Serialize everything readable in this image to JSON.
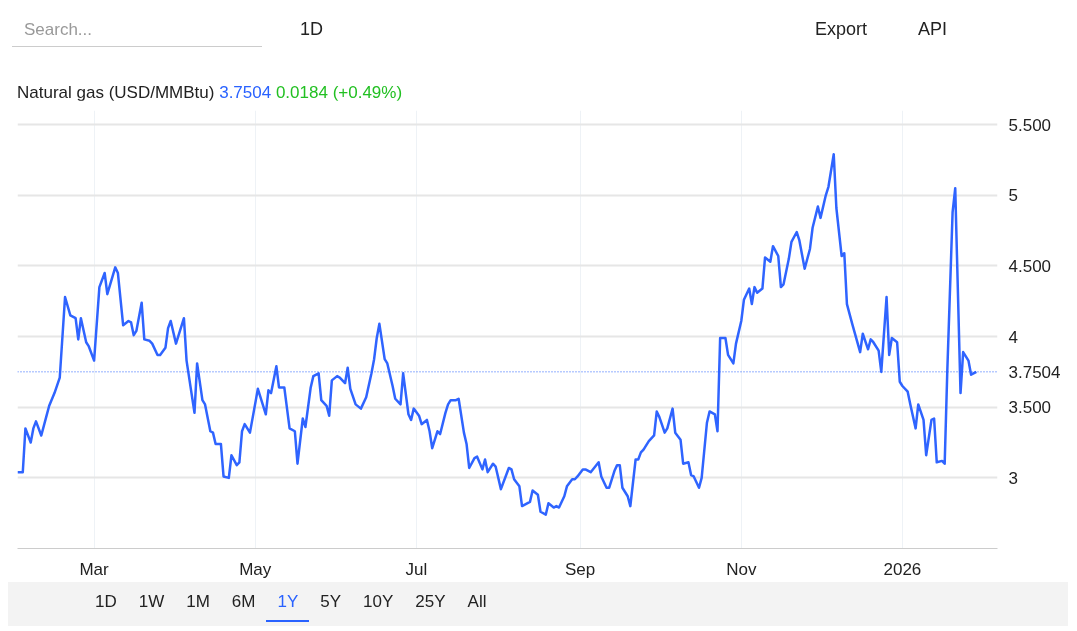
{
  "chart_data": {
    "type": "line",
    "title": "Natural gas (USD/MMBtu)",
    "annotations": [
      "3.7504",
      "0.0184 (+0.49%)",
      "Search...",
      "1D",
      "Export",
      "API",
      "1D",
      "1W",
      "1M",
      "6M",
      "1Y",
      "5Y",
      "10Y",
      "25Y",
      "All"
    ],
    "x": [
      "2025-01-31",
      "2025-02-02",
      "2025-02-03",
      "2025-02-05",
      "2025-02-06",
      "2025-02-07",
      "2025-02-09",
      "2025-02-11",
      "2025-02-12",
      "2025-02-14",
      "2025-02-16",
      "2025-02-18",
      "2025-02-20",
      "2025-02-22",
      "2025-02-23",
      "2025-02-24",
      "2025-02-26",
      "2025-02-27",
      "2025-03-01",
      "2025-03-03",
      "2025-03-05",
      "2025-03-06",
      "2025-03-09",
      "2025-03-10",
      "2025-03-12",
      "2025-03-14",
      "2025-03-15",
      "2025-03-16",
      "2025-03-17",
      "2025-03-19",
      "2025-03-20",
      "2025-03-22",
      "2025-03-23",
      "2025-03-25",
      "2025-03-26",
      "2025-03-28",
      "2025-03-29",
      "2025-03-30",
      "2025-04-01",
      "2025-04-04",
      "2025-04-05",
      "2025-04-08",
      "2025-04-09",
      "2025-04-11",
      "2025-04-12",
      "2025-04-14",
      "2025-04-15",
      "2025-04-16",
      "2025-04-18",
      "2025-04-19",
      "2025-04-21",
      "2025-04-22",
      "2025-04-24",
      "2025-04-25",
      "2025-04-26",
      "2025-04-27",
      "2025-04-29",
      "2025-05-02",
      "2025-05-05",
      "2025-05-06",
      "2025-05-07",
      "2025-05-09",
      "2025-05-10",
      "2025-05-12",
      "2025-05-14",
      "2025-05-16",
      "2025-05-17",
      "2025-05-19",
      "2025-05-20",
      "2025-05-22",
      "2025-05-23",
      "2025-05-25",
      "2025-05-26",
      "2025-05-28",
      "2025-05-29",
      "2025-05-30",
      "2025-06-01",
      "2025-06-02",
      "2025-06-04",
      "2025-06-05",
      "2025-06-06",
      "2025-06-08",
      "2025-06-10",
      "2025-06-12",
      "2025-06-14",
      "2025-06-15",
      "2025-06-16",
      "2025-06-17",
      "2025-06-19",
      "2025-06-20",
      "2025-06-22",
      "2025-06-23",
      "2025-06-25",
      "2025-06-26",
      "2025-06-28",
      "2025-06-29",
      "2025-06-30",
      "2025-07-02",
      "2025-07-03",
      "2025-07-05",
      "2025-07-06",
      "2025-07-07",
      "2025-07-09",
      "2025-07-10",
      "2025-07-12",
      "2025-07-13",
      "2025-07-14",
      "2025-07-16",
      "2025-07-17",
      "2025-07-19",
      "2025-07-20",
      "2025-07-21",
      "2025-07-23",
      "2025-07-24",
      "2025-07-26",
      "2025-07-27",
      "2025-07-28",
      "2025-07-30",
      "2025-07-31",
      "2025-08-02",
      "2025-08-05",
      "2025-08-06",
      "2025-08-07",
      "2025-08-09",
      "2025-08-10",
      "2025-08-13",
      "2025-08-14",
      "2025-08-16",
      "2025-08-17",
      "2025-08-19",
      "2025-08-20",
      "2025-08-22",
      "2025-08-23",
      "2025-08-24",
      "2025-08-26",
      "2025-08-27",
      "2025-08-29",
      "2025-08-30",
      "2025-08-31",
      "2025-09-02",
      "2025-09-03",
      "2025-09-05",
      "2025-09-08",
      "2025-09-09",
      "2025-09-11",
      "2025-09-12",
      "2025-09-14",
      "2025-09-15",
      "2025-09-16",
      "2025-09-17",
      "2025-09-19",
      "2025-09-20",
      "2025-09-22",
      "2025-09-23",
      "2025-09-24",
      "2025-09-25",
      "2025-09-27",
      "2025-09-29",
      "2025-09-30",
      "2025-10-01",
      "2025-10-03",
      "2025-10-04",
      "2025-10-06",
      "2025-10-07",
      "2025-10-09",
      "2025-10-10",
      "2025-10-12",
      "2025-10-13",
      "2025-10-14",
      "2025-10-16",
      "2025-10-17",
      "2025-10-19",
      "2025-10-20",
      "2025-10-22",
      "2025-10-23",
      "2025-10-24",
      "2025-10-26",
      "2025-10-27",
      "2025-10-29",
      "2025-10-30",
      "2025-11-01",
      "2025-11-02",
      "2025-11-04",
      "2025-11-05",
      "2025-11-06",
      "2025-11-07",
      "2025-11-09",
      "2025-11-10",
      "2025-11-12",
      "2025-11-13",
      "2025-11-15",
      "2025-11-16",
      "2025-11-17",
      "2025-11-19",
      "2025-11-20",
      "2025-11-22",
      "2025-11-23",
      "2025-11-25",
      "2025-11-27",
      "2025-11-28",
      "2025-11-30",
      "2025-12-01",
      "2025-12-03",
      "2025-12-04",
      "2025-12-06",
      "2025-12-07",
      "2025-12-09",
      "2025-12-10",
      "2025-12-11",
      "2025-12-13",
      "2025-12-16",
      "2025-12-17",
      "2025-12-19",
      "2025-12-20",
      "2025-12-21",
      "2025-12-23",
      "2025-12-24",
      "2025-12-26",
      "2025-12-27",
      "2025-12-28",
      "2025-12-30",
      "2025-12-31",
      "2026-01-01",
      "2026-01-03",
      "2026-01-04",
      "2026-01-06",
      "2026-01-07",
      "2026-01-09",
      "2026-01-10",
      "2026-01-12",
      "2026-01-13",
      "2026-01-14",
      "2026-01-16",
      "2026-01-17",
      "2026-01-18",
      "2026-01-20",
      "2026-01-21",
      "2026-01-23",
      "2026-01-24",
      "2026-01-26",
      "2026-01-27",
      "2026-01-29"
    ],
    "series": [
      {
        "color": "#2f64ff",
        "values": [
          3.04,
          3.04,
          3.35,
          3.25,
          3.35,
          3.4,
          3.3,
          3.44,
          3.51,
          3.6,
          3.71,
          4.28,
          4.15,
          4.13,
          3.98,
          4.13,
          3.96,
          3.93,
          3.83,
          4.35,
          4.45,
          4.3,
          4.49,
          4.45,
          4.08,
          4.11,
          4.1,
          4.01,
          4.04,
          4.24,
          3.98,
          3.97,
          3.95,
          3.87,
          3.87,
          3.92,
          4.06,
          4.11,
          3.95,
          4.13,
          3.83,
          3.46,
          3.81,
          3.55,
          3.52,
          3.33,
          3.32,
          3.24,
          3.24,
          3.01,
          3.0,
          3.16,
          3.09,
          3.11,
          3.33,
          3.38,
          3.32,
          3.63,
          3.45,
          3.62,
          3.6,
          3.79,
          3.64,
          3.64,
          3.35,
          3.33,
          3.1,
          3.42,
          3.36,
          3.64,
          3.72,
          3.74,
          3.55,
          3.51,
          3.44,
          3.69,
          3.72,
          3.71,
          3.67,
          3.78,
          3.63,
          3.52,
          3.49,
          3.57,
          3.74,
          3.84,
          3.99,
          4.09,
          3.84,
          3.81,
          3.65,
          3.56,
          3.52,
          3.74,
          3.45,
          3.41,
          3.49,
          3.44,
          3.38,
          3.41,
          3.33,
          3.21,
          3.33,
          3.31,
          3.46,
          3.52,
          3.55,
          3.55,
          3.56,
          3.32,
          3.24,
          3.07,
          3.14,
          3.15,
          3.06,
          3.13,
          3.04,
          3.1,
          3.08,
          2.92,
          3.07,
          3.06,
          2.99,
          2.94,
          2.8,
          2.83,
          2.91,
          2.88,
          2.76,
          2.74,
          2.82,
          2.79,
          2.8,
          2.79,
          2.87,
          2.94,
          2.99,
          2.99,
          3.01,
          3.06,
          3.06,
          3.04,
          3.11,
          3.01,
          2.93,
          2.93,
          3.05,
          3.09,
          3.09,
          2.93,
          2.87,
          2.8,
          3.13,
          3.13,
          3.18,
          3.2,
          3.26,
          3.3,
          3.47,
          3.43,
          3.32,
          3.35,
          3.49,
          3.32,
          3.27,
          3.1,
          3.11,
          3.02,
          3.01,
          2.93,
          3.0,
          3.39,
          3.47,
          3.45,
          3.33,
          3.99,
          3.99,
          3.87,
          3.81,
          3.95,
          4.11,
          4.26,
          4.34,
          4.23,
          4.35,
          4.31,
          4.34,
          4.56,
          4.53,
          4.64,
          4.57,
          4.35,
          4.37,
          4.55,
          4.67,
          4.74,
          4.68,
          4.48,
          4.62,
          4.77,
          4.92,
          4.84,
          5.0,
          5.06,
          5.29,
          4.91,
          4.57,
          4.59,
          4.23,
          4.09,
          3.89,
          4.02,
          3.91,
          3.98,
          3.96,
          3.9,
          3.75,
          4.28,
          3.87,
          3.99,
          3.96,
          3.68,
          3.65,
          3.61,
          3.52,
          3.35,
          3.52,
          3.41,
          3.16,
          3.41,
          3.42,
          3.11,
          3.12,
          3.1,
          3.76,
          4.88,
          5.05,
          3.6,
          3.89,
          3.83,
          3.73,
          3.7504
        ]
      }
    ],
    "xlim": [
      "2025-01-31",
      "2026-02-06"
    ],
    "xticks": [
      {
        "value": "2025-03-01",
        "label": "Mar"
      },
      {
        "value": "2025-05-01",
        "label": "May"
      },
      {
        "value": "2025-07-01",
        "label": "Jul"
      },
      {
        "value": "2025-09-01",
        "label": "Sep"
      },
      {
        "value": "2025-11-01",
        "label": "Nov"
      },
      {
        "value": "2026-01-01",
        "label": "2026"
      }
    ],
    "ylim": [
      2.5,
      5.6
    ],
    "yticks": [
      3,
      {
        "value": 3.5,
        "label": "3.500"
      },
      4,
      {
        "value": 4.5,
        "label": "4.500"
      },
      5,
      {
        "value": 5.5,
        "label": "5.500"
      }
    ],
    "ref_lines": [
      {
        "axis": "y",
        "value": 3.7504,
        "label": "3.7504",
        "color": "#2962ff",
        "line_style": "dotted"
      }
    ],
    "grid": true
  }
}
